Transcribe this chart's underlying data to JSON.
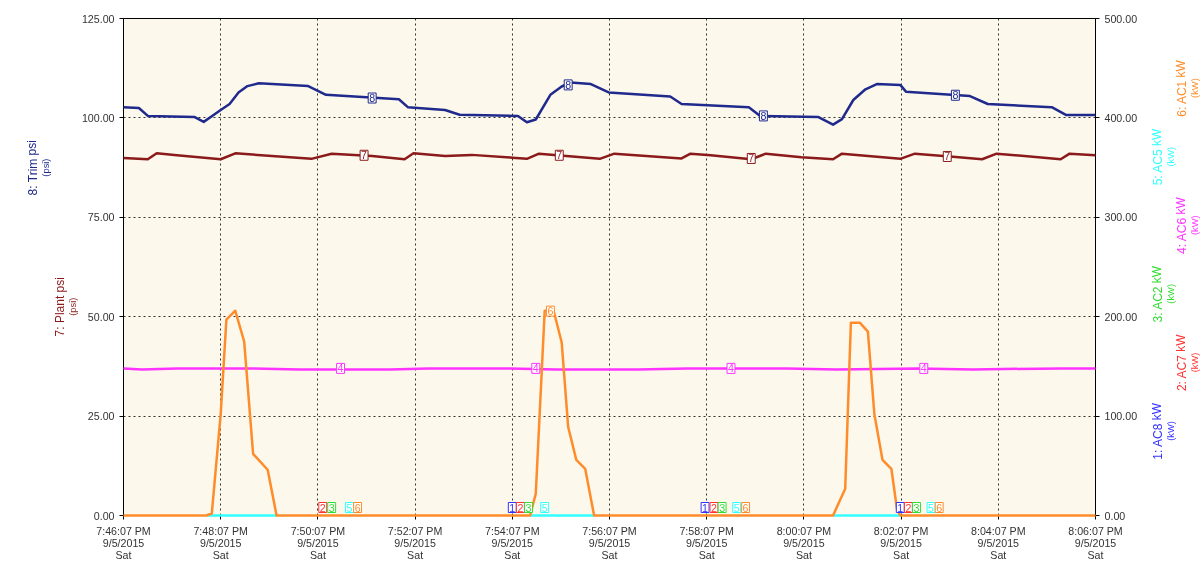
{
  "chart_data": {
    "type": "line",
    "ylabel": "(psi)",
    "y2label": "(kW)",
    "xlim": [
      "2015-09-05T19:46:07",
      "2015-09-05T20:06:07"
    ],
    "xticks": [
      {
        "value": "2015-09-05T19:46:07",
        "label": "7:46:07 PM\n9/5/2015\nSat"
      },
      {
        "value": "2015-09-05T19:48:07",
        "label": "7:48:07 PM\n9/5/2015\nSat"
      },
      {
        "value": "2015-09-05T19:50:07",
        "label": "7:50:07 PM\n9/5/2015\nSat"
      },
      {
        "value": "2015-09-05T19:52:07",
        "label": "7:52:07 PM\n9/5/2015\nSat"
      },
      {
        "value": "2015-09-05T19:54:07",
        "label": "7:54:07 PM\n9/5/2015\nSat"
      },
      {
        "value": "2015-09-05T19:56:07",
        "label": "7:56:07 PM\n9/5/2015\nSat"
      },
      {
        "value": "2015-09-05T19:58:07",
        "label": "7:58:07 PM\n9/5/2015\nSat"
      },
      {
        "value": "2015-09-05T20:00:07",
        "label": "8:00:07 PM\n9/5/2015\nSat"
      },
      {
        "value": "2015-09-05T20:02:07",
        "label": "8:02:07 PM\n9/5/2015\nSat"
      },
      {
        "value": "2015-09-05T20:04:07",
        "label": "8:04:07 PM\n9/5/2015\nSat"
      },
      {
        "value": "2015-09-05T20:06:07",
        "label": "8:06:07 PM\n9/5/2015\nSat"
      }
    ],
    "ylim": [
      0,
      125
    ],
    "yticks": [
      {
        "value": 0,
        "label": "0.00"
      },
      {
        "value": 25,
        "label": "25.00"
      },
      {
        "value": 50,
        "label": "50.00"
      },
      {
        "value": 75,
        "label": "75.00"
      },
      {
        "value": 100,
        "label": "100.00"
      },
      {
        "value": 125,
        "label": "125.00"
      }
    ],
    "y2lim": [
      0,
      500
    ],
    "y2ticks": [
      {
        "value": 0,
        "label": "0.00"
      },
      {
        "value": 100,
        "label": "100.00"
      },
      {
        "value": 200,
        "label": "200.00"
      },
      {
        "value": 300,
        "label": "300.00"
      },
      {
        "value": 400,
        "label": "400.00"
      },
      {
        "value": 500,
        "label": "500.00"
      }
    ],
    "grid": true,
    "line_style": "solid",
    "marker": "none",
    "series": [
      {
        "name": "8: Trim psi",
        "color": "#1f2a8c",
        "x": [
          "2015-09-05T19:46:07",
          "2015-09-05T19:46:26",
          "2015-09-05T19:46:37",
          "2015-09-05T19:47:35",
          "2015-09-05T19:47:46",
          "2015-09-05T19:47:56",
          "2015-09-05T19:48:07",
          "2015-09-05T19:48:18",
          "2015-09-05T19:48:29",
          "2015-09-05T19:48:40",
          "2015-09-05T19:48:54",
          "2015-09-05T19:49:55",
          "2015-09-05T19:50:17",
          "2015-09-05T19:51:47",
          "2015-09-05T19:51:58",
          "2015-09-05T19:52:44",
          "2015-09-05T19:53:02",
          "2015-09-05T19:54:14",
          "2015-09-05T19:54:25",
          "2015-09-05T19:54:36",
          "2015-09-05T19:54:54",
          "2015-09-05T19:55:08",
          "2015-09-05T19:55:19",
          "2015-09-05T19:55:44",
          "2015-09-05T19:56:06",
          "2015-09-05T19:57:22",
          "2015-09-05T19:57:36",
          "2015-09-05T19:58:59",
          "2015-09-05T19:59:13",
          "2015-09-05T20:00:25",
          "2015-09-05T20:00:43",
          "2015-09-05T20:00:54",
          "2015-09-05T20:01:08",
          "2015-09-05T20:01:23",
          "2015-09-05T20:01:37",
          "2015-09-05T20:02:06",
          "2015-09-05T20:02:13",
          "2015-09-05T20:03:32",
          "2015-09-05T20:03:54",
          "2015-09-05T20:05:13",
          "2015-09-05T20:05:31",
          "2015-09-05T20:06:07"
        ],
        "values": [
          102.7,
          102.5,
          100.5,
          100.2,
          99.0,
          100.4,
          102.0,
          103.5,
          106.4,
          108.0,
          108.7,
          108.0,
          105.8,
          104.7,
          102.7,
          102.0,
          100.8,
          100.5,
          98.9,
          99.6,
          105.8,
          107.9,
          108.9,
          108.5,
          106.4,
          105.4,
          103.5,
          102.7,
          100.5,
          100.2,
          98.3,
          99.7,
          104.5,
          107.2,
          108.5,
          108.3,
          106.6,
          105.5,
          103.5,
          102.7,
          100.7,
          100.7
        ]
      },
      {
        "name": "7: Plant psi",
        "color": "#8b1a1a",
        "x": [
          "2015-09-05T19:46:07",
          "2015-09-05T19:46:37",
          "2015-09-05T19:46:48",
          "2015-09-05T19:47:13",
          "2015-09-05T19:48:07",
          "2015-09-05T19:48:25",
          "2015-09-05T19:49:59",
          "2015-09-05T19:50:24",
          "2015-09-05T19:51:14",
          "2015-09-05T19:51:54",
          "2015-09-05T19:52:05",
          "2015-09-05T19:52:44",
          "2015-09-05T19:53:17",
          "2015-09-05T19:54:07",
          "2015-09-05T19:54:25",
          "2015-09-05T19:54:40",
          "2015-09-05T19:55:55",
          "2015-09-05T19:56:13",
          "2015-09-05T19:57:36",
          "2015-09-05T19:57:47",
          "2015-09-05T19:58:12",
          "2015-09-05T19:59:02",
          "2015-09-05T19:59:20",
          "2015-09-05T20:00:04",
          "2015-09-05T20:00:43",
          "2015-09-05T20:00:54",
          "2015-09-05T20:02:06",
          "2015-09-05T20:02:24",
          "2015-09-05T20:03:11",
          "2015-09-05T20:03:47",
          "2015-09-05T20:04:05",
          "2015-09-05T20:05:24",
          "2015-09-05T20:05:35",
          "2015-09-05T20:06:07"
        ],
        "values": [
          89.9,
          89.6,
          91.1,
          90.6,
          89.6,
          91.1,
          89.7,
          91.0,
          90.4,
          89.6,
          91.1,
          90.4,
          90.7,
          90.0,
          89.7,
          91.0,
          89.7,
          91.0,
          89.8,
          91.0,
          90.6,
          89.6,
          91.0,
          90.1,
          89.6,
          91.0,
          89.7,
          91.0,
          90.2,
          89.6,
          91.0,
          89.6,
          91.0,
          90.6
        ]
      },
      {
        "name": "1: AC8 kW",
        "color": "#3333ff",
        "axis": "y2",
        "values": [
          null
        ]
      },
      {
        "name": "2: AC7 kW",
        "color": "#ff3333",
        "axis": "y2",
        "values": [
          null
        ]
      },
      {
        "name": "3: AC2 kW",
        "color": "#33dd33",
        "axis": "y2",
        "values": [
          null
        ]
      },
      {
        "name": "4: AC6 kW",
        "color": "#ff33ff",
        "axis": "y2",
        "x": [
          "2015-09-05T19:46:07",
          "2015-09-05T19:46:30",
          "2015-09-05T19:47:13",
          "2015-09-05T19:48:47",
          "2015-09-05T19:49:44",
          "2015-09-05T19:51:36",
          "2015-09-05T19:52:23",
          "2015-09-05T19:54:04",
          "2015-09-05T19:55:01",
          "2015-09-05T19:56:42",
          "2015-09-05T19:57:43",
          "2015-09-05T19:59:46",
          "2015-09-05T20:00:47",
          "2015-09-05T20:02:28",
          "2015-09-05T20:03:36",
          "2015-09-05T20:05:24",
          "2015-09-05T20:06:07"
        ],
        "values": [
          148,
          147,
          148,
          148,
          147,
          147,
          148,
          148,
          147,
          147,
          148,
          148,
          147,
          148,
          147,
          148,
          148
        ]
      },
      {
        "name": "5: AC5 kW",
        "color": "#33ffff",
        "axis": "y2",
        "x": [
          "2015-09-05T19:47:49",
          "2015-09-05T19:49:16",
          "2015-09-05T19:52:00",
          "2015-09-05T19:54:29",
          "2015-09-05T19:55:48",
          "2015-09-05T19:58:00",
          "2015-09-05T20:00:43",
          "2015-09-05T20:02:06"
        ],
        "values": [
          0,
          0,
          null,
          0,
          0,
          null,
          0,
          0
        ]
      },
      {
        "name": "6: AC1 kW",
        "color": "#ff8c2a",
        "axis": "y2",
        "x": [
          "2015-09-05T19:46:07",
          "2015-09-05T19:47:49",
          "2015-09-05T19:47:56",
          "2015-09-05T19:48:07",
          "2015-09-05T19:48:14",
          "2015-09-05T19:48:25",
          "2015-09-05T19:48:36",
          "2015-09-05T19:48:47",
          "2015-09-05T19:49:05",
          "2015-09-05T19:49:16",
          "2015-09-05T19:54:29",
          "2015-09-05T19:54:36",
          "2015-09-05T19:54:47",
          "2015-09-05T19:54:58",
          "2015-09-05T19:55:08",
          "2015-09-05T19:55:16",
          "2015-09-05T19:55:26",
          "2015-09-05T19:55:37",
          "2015-09-05T19:55:48",
          "2015-09-05T20:00:43",
          "2015-09-05T20:00:58",
          "2015-09-05T20:01:05",
          "2015-09-05T20:01:16",
          "2015-09-05T20:01:26",
          "2015-09-05T20:01:34",
          "2015-09-05T20:01:44",
          "2015-09-05T20:01:55",
          "2015-09-05T20:02:02",
          "2015-09-05T20:02:06",
          "2015-09-05T20:06:07"
        ],
        "values": [
          0,
          0,
          2,
          102,
          197,
          206,
          175,
          62,
          46,
          0,
          0,
          22,
          206,
          206,
          174,
          89,
          56,
          47,
          0,
          0,
          27,
          194,
          194,
          185,
          102,
          56,
          47,
          6,
          0,
          0
        ]
      }
    ],
    "annotations": [
      {
        "text": "8",
        "x": "2015-09-05T19:51:14",
        "y": 105
      },
      {
        "text": "8",
        "x": "2015-09-05T19:55:16",
        "y": 108.3
      },
      {
        "text": "8",
        "x": "2015-09-05T19:59:17",
        "y": 100.5
      },
      {
        "text": "8",
        "x": "2015-09-05T20:03:14",
        "y": 105.7
      },
      {
        "text": "7",
        "x": "2015-09-05T19:51:04",
        "y": 90.6
      },
      {
        "text": "7",
        "x": "2015-09-05T19:55:05",
        "y": 90.6
      },
      {
        "text": "7",
        "x": "2015-09-05T19:59:02",
        "y": 89.8
      },
      {
        "text": "7",
        "x": "2015-09-05T20:03:04",
        "y": 90.3
      },
      {
        "text": "4",
        "x": "2015-09-05T19:50:35",
        "y": 37
      },
      {
        "text": "4",
        "x": "2015-09-05T19:54:36",
        "y": 37
      },
      {
        "text": "4",
        "x": "2015-09-05T19:58:37",
        "y": 37
      },
      {
        "text": "4",
        "x": "2015-09-05T20:02:35",
        "y": 37
      },
      {
        "text": "6",
        "x": "2015-09-05T19:54:54",
        "y": 51.4
      },
      {
        "text": "2",
        "x": "2015-09-05T19:50:13",
        "y": 0
      },
      {
        "text": "3",
        "x": "2015-09-05T19:50:24",
        "y": 0
      },
      {
        "text": "5",
        "x": "2015-09-05T19:50:46",
        "y": 0
      },
      {
        "text": "6",
        "x": "2015-09-05T19:50:56",
        "y": 0
      },
      {
        "text": "1",
        "x": "2015-09-05T19:54:07",
        "y": 0
      },
      {
        "text": "2",
        "x": "2015-09-05T19:54:17",
        "y": 0
      },
      {
        "text": "3",
        "x": "2015-09-05T19:54:27",
        "y": 0
      },
      {
        "text": "5",
        "x": "2015-09-05T19:54:47",
        "y": 0
      },
      {
        "text": "1",
        "x": "2015-09-05T19:58:05",
        "y": 0
      },
      {
        "text": "2",
        "x": "2015-09-05T19:58:16",
        "y": 0
      },
      {
        "text": "3",
        "x": "2015-09-05T19:58:26",
        "y": 0
      },
      {
        "text": "5",
        "x": "2015-09-05T19:58:44",
        "y": 0
      },
      {
        "text": "6",
        "x": "2015-09-05T19:58:55",
        "y": 0
      },
      {
        "text": "1",
        "x": "2015-09-05T20:02:06",
        "y": 0
      },
      {
        "text": "2",
        "x": "2015-09-05T20:02:16",
        "y": 0
      },
      {
        "text": "3",
        "x": "2015-09-05T20:02:26",
        "y": 0
      },
      {
        "text": "5",
        "x": "2015-09-05T20:02:44",
        "y": 0
      },
      {
        "text": "6",
        "x": "2015-09-05T20:02:54",
        "y": 0
      }
    ]
  }
}
